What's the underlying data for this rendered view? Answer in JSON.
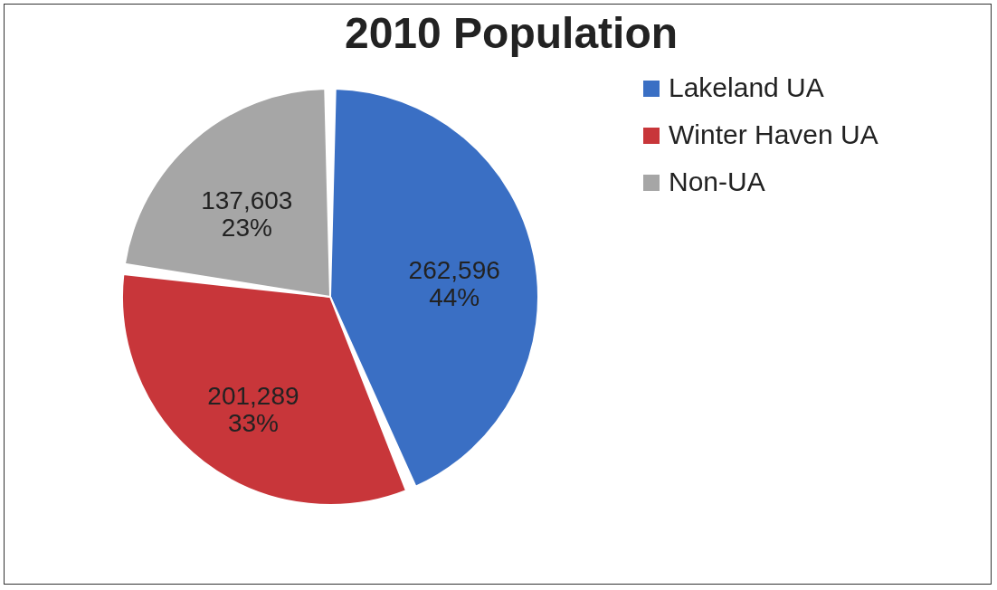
{
  "chart_data": {
    "type": "pie",
    "title": "2010 Population",
    "categories": [
      "Lakeland UA",
      "Winter Haven UA",
      "Non-UA"
    ],
    "values": [
      262596,
      201289,
      137603
    ],
    "colors": [
      "#3a6fc4",
      "#c8363a",
      "#a6a6a6"
    ],
    "value_labels": [
      "262,596\n44%",
      "201,289\n33%",
      "137,603\n23%"
    ],
    "legend": "right"
  }
}
